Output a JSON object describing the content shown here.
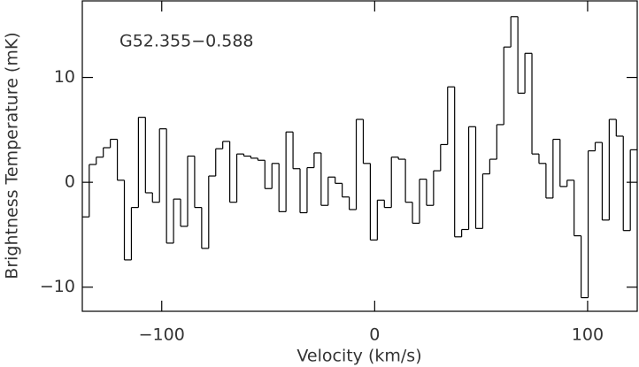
{
  "chart_data": {
    "type": "step",
    "annotation": "G52.355−0.588",
    "x_label": "Velocity (km/s)",
    "y_label": "Brightness Temperature (mK)",
    "x": [
      -135.7,
      -132.4,
      -129.1,
      -125.8,
      -122.5,
      -119.2,
      -115.9,
      -112.6,
      -109.3,
      -106.0,
      -102.7,
      -99.4,
      -96.1,
      -92.8,
      -89.5,
      -86.2,
      -82.9,
      -79.6,
      -76.3,
      -73.0,
      -69.7,
      -66.4,
      -63.1,
      -59.8,
      -56.5,
      -53.2,
      -49.9,
      -46.6,
      -43.3,
      -40.0,
      -36.7,
      -33.4,
      -30.1,
      -26.8,
      -23.5,
      -20.2,
      -16.9,
      -13.6,
      -10.3,
      -7.0,
      -3.7,
      -0.4,
      2.9,
      6.2,
      9.5,
      12.8,
      16.1,
      19.4,
      22.7,
      26.0,
      29.3,
      32.6,
      35.9,
      39.2,
      42.5,
      45.8,
      49.1,
      52.4,
      55.7,
      59.0,
      62.3,
      65.6,
      68.9,
      72.2,
      75.5,
      78.8,
      82.1,
      85.4,
      88.7,
      92.0,
      95.3,
      98.6,
      101.9,
      105.2,
      108.5,
      111.8,
      115.1,
      118.4,
      121.7
    ],
    "values": [
      -3.3,
      1.7,
      2.4,
      3.3,
      4.1,
      0.2,
      -7.4,
      -2.4,
      6.2,
      -1,
      -1.9,
      5.1,
      -5.8,
      -1.6,
      -4.2,
      2.5,
      -2.4,
      -6.3,
      0.6,
      3.2,
      3.9,
      -1.9,
      2.7,
      2.5,
      2.3,
      2.1,
      -0.6,
      1.8,
      -2.8,
      4.8,
      1.3,
      -2.9,
      1.4,
      2.8,
      -2.2,
      0.5,
      -0.1,
      -1.4,
      -2.6,
      6.0,
      1.8,
      -5.5,
      -1.7,
      -2.4,
      2.4,
      2.2,
      -1.9,
      -3.9,
      0.3,
      -2.2,
      1.1,
      3.6,
      9.1,
      -5.2,
      -4.5,
      5.3,
      -4.4,
      0.8,
      2.2,
      5.5,
      12.9,
      15.8,
      8.5,
      12.3,
      2.7,
      1.8,
      -1.5,
      4.1,
      -0.4,
      0.2,
      -5.1,
      -11,
      3.0,
      3.8,
      -3.6,
      6.0,
      4.4,
      -4.6,
      3.1
    ],
    "color": "#000000",
    "xlim": [
      -137.3,
      123.3
    ],
    "ylim": [
      -12.3,
      17.3
    ],
    "xticks": [
      {
        "value": -100,
        "label": "−100"
      },
      0,
      100
    ],
    "yticks": [
      {
        "value": -10,
        "label": "−10"
      },
      0,
      10
    ]
  }
}
